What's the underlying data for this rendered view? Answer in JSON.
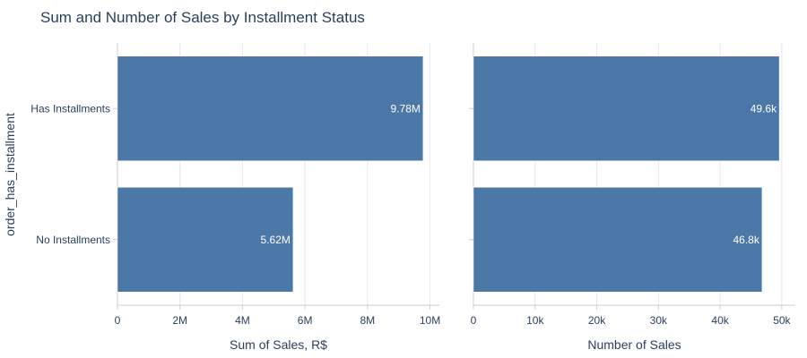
{
  "title": "Sum and Number of Sales by Installment Status",
  "y_axis_title": "order_has_installment",
  "colors": {
    "bar": "#4c78a8",
    "text": "#2a3f5f",
    "grid": "#e5e8ee"
  },
  "chart_data": [
    {
      "type": "bar",
      "orientation": "horizontal",
      "categories": [
        "Has Installments",
        "No Installments"
      ],
      "values": [
        9780000,
        5620000
      ],
      "data_labels": [
        "9.78M",
        "5.62M"
      ],
      "xlabel": "Sum of Sales, R$",
      "ylabel": "order_has_installment",
      "xlim": [
        0,
        10300000
      ],
      "xticks": [
        0,
        2000000,
        4000000,
        6000000,
        8000000,
        10000000
      ],
      "xtick_labels": [
        "0",
        "2M",
        "4M",
        "6M",
        "8M",
        "10M"
      ],
      "grid": true
    },
    {
      "type": "bar",
      "orientation": "horizontal",
      "categories": [
        "Has Installments",
        "No Installments"
      ],
      "values": [
        49600,
        46800
      ],
      "data_labels": [
        "49.6k",
        "46.8k"
      ],
      "xlabel": "Number of Sales",
      "xlim": [
        0,
        52200
      ],
      "xticks": [
        0,
        10000,
        20000,
        30000,
        40000,
        50000
      ],
      "xtick_labels": [
        "0",
        "10k",
        "20k",
        "30k",
        "40k",
        "50k"
      ],
      "grid": true
    }
  ]
}
